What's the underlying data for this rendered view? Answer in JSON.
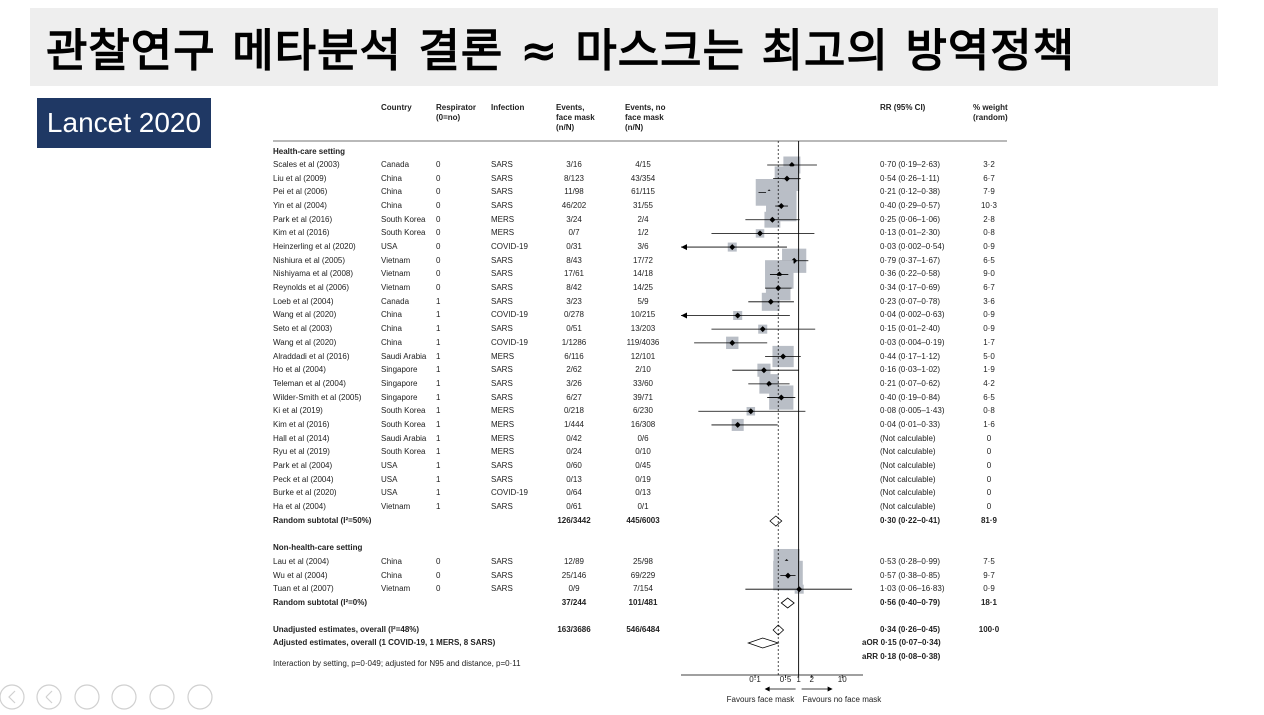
{
  "title": "관찰연구 메타분석 결론 ≈ 마스크는 최고의 방역정책",
  "badge": "Lancet 2020",
  "table": {
    "headers": [
      "Country",
      "Respirator\n(0=no)",
      "Infection",
      "Events,\nface mask\n(n/N)",
      "Events, no\nface mask\n(n/N)",
      "RR (95% CI)",
      "% weight\n(random)"
    ],
    "sections": [
      {
        "heading": "Health-care setting",
        "rows": [
          [
            "Scales et al (2003)",
            "Canada",
            "0",
            "SARS",
            "3/16",
            "4/15",
            "0·70 (0·19–2·63)",
            "3·2"
          ],
          [
            "Liu et al (2009)",
            "China",
            "0",
            "SARS",
            "8/123",
            "43/354",
            "0·54 (0·26–1·11)",
            "6·7"
          ],
          [
            "Pei et al (2006)",
            "China",
            "0",
            "SARS",
            "11/98",
            "61/115",
            "0·21 (0·12–0·38)",
            "7·9"
          ],
          [
            "Yin et al (2004)",
            "China",
            "0",
            "SARS",
            "46/202",
            "31/55",
            "0·40 (0·29–0·57)",
            "10·3"
          ],
          [
            "Park et al (2016)",
            "South Korea",
            "0",
            "MERS",
            "3/24",
            "2/4",
            "0·25 (0·06–1·06)",
            "2·8"
          ],
          [
            "Kim et al (2016)",
            "South Korea",
            "0",
            "MERS",
            "0/7",
            "1/2",
            "0·13 (0·01–2·30)",
            "0·8"
          ],
          [
            "Heinzerling et al (2020)",
            "USA",
            "0",
            "COVID-19",
            "0/31",
            "3/6",
            "0·03 (0·002–0·54)",
            "0·9"
          ],
          [
            "Nishiura et al (2005)",
            "Vietnam",
            "0",
            "SARS",
            "8/43",
            "17/72",
            "0·79 (0·37–1·67)",
            "6·5"
          ],
          [
            "Nishiyama et al (2008)",
            "Vietnam",
            "0",
            "SARS",
            "17/61",
            "14/18",
            "0·36 (0·22–0·58)",
            "9·0"
          ],
          [
            "Reynolds et al (2006)",
            "Vietnam",
            "0",
            "SARS",
            "8/42",
            "14/25",
            "0·34 (0·17–0·69)",
            "6·7"
          ],
          [
            "Loeb et al (2004)",
            "Canada",
            "1",
            "SARS",
            "3/23",
            "5/9",
            "0·23 (0·07–0·78)",
            "3·6"
          ],
          [
            "Wang et al (2020)",
            "China",
            "1",
            "COVID-19",
            "0/278",
            "10/215",
            "0·04 (0·002–0·63)",
            "0·9"
          ],
          [
            "Seto et al (2003)",
            "China",
            "1",
            "SARS",
            "0/51",
            "13/203",
            "0·15 (0·01–2·40)",
            "0·9"
          ],
          [
            "Wang et al (2020)",
            "China",
            "1",
            "COVID-19",
            "1/1286",
            "119/4036",
            "0·03 (0·004–0·19)",
            "1·7"
          ],
          [
            "Alraddadi et al (2016)",
            "Saudi Arabia",
            "1",
            "MERS",
            "6/116",
            "12/101",
            "0·44 (0·17–1·12)",
            "5·0"
          ],
          [
            "Ho et al (2004)",
            "Singapore",
            "1",
            "SARS",
            "2/62",
            "2/10",
            "0·16 (0·03–1·02)",
            "1·9"
          ],
          [
            "Teleman et al (2004)",
            "Singapore",
            "1",
            "SARS",
            "3/26",
            "33/60",
            "0·21 (0·07–0·62)",
            "4·2"
          ],
          [
            "Wilder-Smith et al (2005)",
            "Singapore",
            "1",
            "SARS",
            "6/27",
            "39/71",
            "0·40 (0·19–0·84)",
            "6·5"
          ],
          [
            "Ki et al (2019)",
            "South Korea",
            "1",
            "MERS",
            "0/218",
            "6/230",
            "0·08 (0·005–1·43)",
            "0·8"
          ],
          [
            "Kim et al (2016)",
            "South Korea",
            "1",
            "MERS",
            "1/444",
            "16/308",
            "0·04 (0·01–0·33)",
            "1·6"
          ],
          [
            "Hall et al (2014)",
            "Saudi Arabia",
            "1",
            "MERS",
            "0/42",
            "0/6",
            "(Not calculable)",
            "0"
          ],
          [
            "Ryu et al (2019)",
            "South Korea",
            "1",
            "MERS",
            "0/24",
            "0/10",
            "(Not calculable)",
            "0"
          ],
          [
            "Park et al (2004)",
            "USA",
            "1",
            "SARS",
            "0/60",
            "0/45",
            "(Not calculable)",
            "0"
          ],
          [
            "Peck et al (2004)",
            "USA",
            "1",
            "SARS",
            "0/13",
            "0/19",
            "(Not calculable)",
            "0"
          ],
          [
            "Burke et al (2020)",
            "USA",
            "1",
            "COVID-19",
            "0/64",
            "0/13",
            "(Not calculable)",
            "0"
          ],
          [
            "Ha et al (2004)",
            "Vietnam",
            "1",
            "SARS",
            "0/61",
            "0/1",
            "(Not calculable)",
            "0"
          ]
        ],
        "subtotal": [
          "Random subtotal (I²=50%)",
          "126/3442",
          "445/6003",
          "0·30 (0·22–0·41)",
          "81·9"
        ]
      },
      {
        "heading": "Non-health-care setting",
        "rows": [
          [
            "Lau et al (2004)",
            "China",
            "0",
            "SARS",
            "12/89",
            "25/98",
            "0·53 (0·28–0·99)",
            "7·5"
          ],
          [
            "Wu et al (2004)",
            "China",
            "0",
            "SARS",
            "25/146",
            "69/229",
            "0·57 (0·38–0·85)",
            "9·7"
          ],
          [
            "Tuan et al (2007)",
            "Vietnam",
            "0",
            "SARS",
            "0/9",
            "7/154",
            "1·03 (0·06–16·83)",
            "0·9"
          ]
        ],
        "subtotal": [
          "Random subtotal (I²=0%)",
          "37/244",
          "101/481",
          "0·56 (0·40–0·79)",
          "18·1"
        ]
      }
    ],
    "overall": [
      "Unadjusted estimates, overall (I²=48%)",
      "163/3686",
      "546/6484",
      "0·34 (0·26–0·45)",
      "100·0"
    ],
    "adjusted": {
      "label": "Adjusted estimates, overall (1 COVID-19, 1 MERS, 8 SARS)",
      "lines": [
        "aOR 0·15 (0·07–0·34)",
        "aRR 0·18 (0·08–0·38)"
      ]
    },
    "note": "Interaction by setting, p=0·049; adjusted for N95 and distance, p=0·11"
  },
  "chart_data": {
    "type": "forest",
    "log": true,
    "xlim": [
      0.002,
      30
    ],
    "xticks": [
      {
        "value": 0.1,
        "label": "0·1"
      },
      {
        "value": 0.5,
        "label": "0·5"
      },
      1,
      2,
      10
    ],
    "axis_labels": [
      "Favours face mask",
      "Favours no face mask"
    ],
    "box_color": "#b9bec6",
    "sections": [
      {
        "values": [
          0.7,
          0.54,
          0.21,
          0.4,
          0.25,
          0.13,
          0.03,
          0.79,
          0.36,
          0.34,
          0.23,
          0.04,
          0.15,
          0.03,
          0.44,
          0.16,
          0.21,
          0.4,
          0.08,
          0.04,
          null,
          null,
          null,
          null,
          null,
          null
        ],
        "lower": [
          0.19,
          0.26,
          0.12,
          0.29,
          0.06,
          0.01,
          0.002,
          0.37,
          0.22,
          0.17,
          0.07,
          0.002,
          0.01,
          0.004,
          0.17,
          0.03,
          0.07,
          0.19,
          0.005,
          0.01,
          null,
          null,
          null,
          null,
          null,
          null
        ],
        "upper": [
          2.63,
          1.11,
          0.38,
          0.57,
          1.06,
          2.3,
          0.54,
          1.67,
          0.58,
          0.69,
          0.78,
          0.63,
          2.4,
          0.19,
          1.12,
          1.02,
          0.62,
          0.84,
          1.43,
          0.33,
          null,
          null,
          null,
          null,
          null,
          null
        ],
        "weights": [
          3.2,
          6.7,
          7.9,
          10.3,
          2.8,
          0.8,
          0.9,
          6.5,
          9.0,
          6.7,
          3.6,
          0.9,
          0.9,
          1.7,
          5.0,
          1.9,
          4.2,
          6.5,
          0.8,
          1.6,
          0,
          0,
          0,
          0,
          0,
          0
        ],
        "subtotal": {
          "value": 0.3,
          "lower": 0.22,
          "upper": 0.41
        }
      },
      {
        "values": [
          0.53,
          0.57,
          1.03
        ],
        "lower": [
          0.28,
          0.38,
          0.06
        ],
        "upper": [
          0.99,
          0.85,
          16.83
        ],
        "weights": [
          7.5,
          9.7,
          0.9
        ],
        "subtotal": {
          "value": 0.56,
          "lower": 0.4,
          "upper": 0.79
        }
      }
    ],
    "overall": {
      "value": 0.34,
      "lower": 0.26,
      "upper": 0.45
    },
    "adjusted": {
      "value": 0.15,
      "lower": 0.07,
      "upper": 0.34
    }
  }
}
